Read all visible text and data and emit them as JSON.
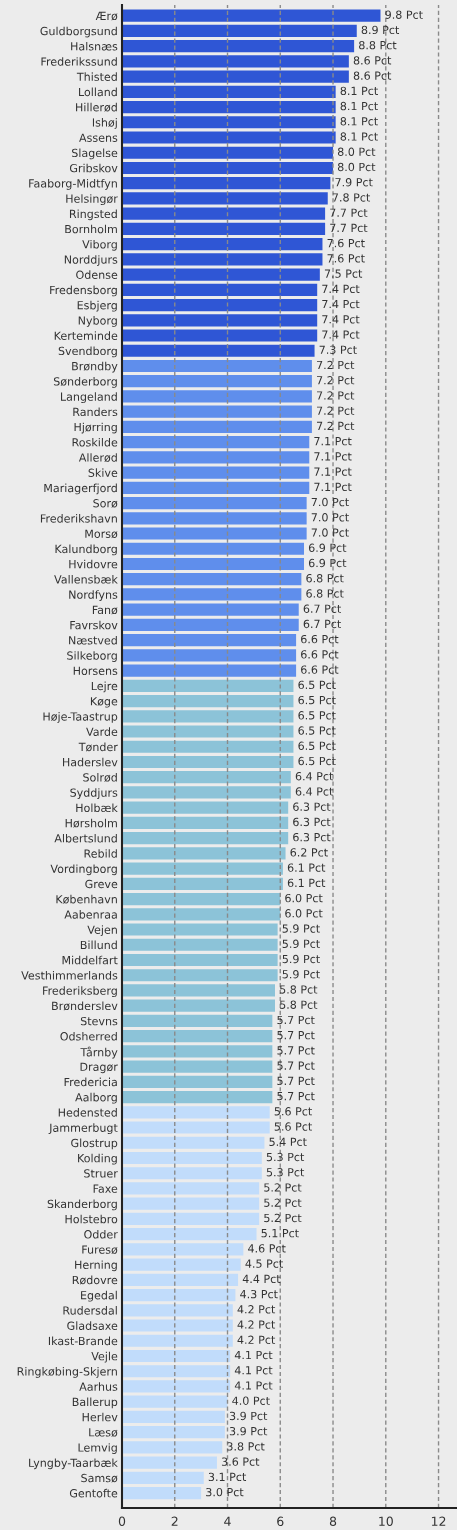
{
  "chart_data": {
    "type": "bar",
    "orientation": "horizontal",
    "categories": [
      "Ærø",
      "Guldborgsund",
      "Halsnæs",
      "Frederikssund",
      "Thisted",
      "Lolland",
      "Hillerød",
      "Ishøj",
      "Assens",
      "Slagelse",
      "Gribskov",
      "Faaborg-Midtfyn",
      "Helsingør",
      "Ringsted",
      "Bornholm",
      "Viborg",
      "Norddjurs",
      "Odense",
      "Fredensborg",
      "Esbjerg",
      "Nyborg",
      "Kerteminde",
      "Svendborg",
      "Brøndby",
      "Sønderborg",
      "Langeland",
      "Randers",
      "Hjørring",
      "Roskilde",
      "Allerød",
      "Skive",
      "Mariagerfjord",
      "Sorø",
      "Frederikshavn",
      "Morsø",
      "Kalundborg",
      "Hvidovre",
      "Vallensbæk",
      "Nordfyns",
      "Fanø",
      "Favrskov",
      "Næstved",
      "Silkeborg",
      "Horsens",
      "Lejre",
      "Køge",
      "Høje-Taastrup",
      "Varde",
      "Tønder",
      "Haderslev",
      "Solrød",
      "Syddjurs",
      "Holbæk",
      "Hørsholm",
      "Albertslund",
      "Rebild",
      "Vordingborg",
      "Greve",
      "København",
      "Aabenraa",
      "Vejen",
      "Billund",
      "Middelfart",
      "Vesthimmerlands",
      "Frederiksberg",
      "Brønderslev",
      "Stevns",
      "Odsherred",
      "Tårnby",
      "Dragør",
      "Fredericia",
      "Aalborg",
      "Hedensted",
      "Jammerbugt",
      "Glostrup",
      "Kolding",
      "Struer",
      "Faxe",
      "Skanderborg",
      "Holstebro",
      "Odder",
      "Furesø",
      "Herning",
      "Rødovre",
      "Egedal",
      "Rudersdal",
      "Gladsaxe",
      "Ikast-Brande",
      "Vejle",
      "Ringkøbing-Skjern",
      "Aarhus",
      "Ballerup",
      "Herlev",
      "Læsø",
      "Lemvig",
      "Lyngby-Taarbæk",
      "Samsø",
      "Gentofte"
    ],
    "values": [
      9.8,
      8.9,
      8.8,
      8.6,
      8.6,
      8.1,
      8.1,
      8.1,
      8.1,
      8.0,
      8.0,
      7.9,
      7.8,
      7.7,
      7.7,
      7.6,
      7.6,
      7.5,
      7.4,
      7.4,
      7.4,
      7.4,
      7.3,
      7.2,
      7.2,
      7.2,
      7.2,
      7.2,
      7.1,
      7.1,
      7.1,
      7.1,
      7.0,
      7.0,
      7.0,
      6.9,
      6.9,
      6.8,
      6.8,
      6.7,
      6.7,
      6.6,
      6.6,
      6.6,
      6.5,
      6.5,
      6.5,
      6.5,
      6.5,
      6.5,
      6.4,
      6.4,
      6.3,
      6.3,
      6.3,
      6.2,
      6.1,
      6.1,
      6.0,
      6.0,
      5.9,
      5.9,
      5.9,
      5.9,
      5.8,
      5.8,
      5.7,
      5.7,
      5.7,
      5.7,
      5.7,
      5.7,
      5.6,
      5.6,
      5.4,
      5.3,
      5.3,
      5.2,
      5.2,
      5.2,
      5.1,
      4.6,
      4.5,
      4.4,
      4.3,
      4.2,
      4.2,
      4.2,
      4.1,
      4.1,
      4.1,
      4.0,
      3.9,
      3.9,
      3.8,
      3.6,
      3.1,
      3.0
    ],
    "value_labels": [
      "9.8 Pct",
      "8.9 Pct",
      "8.8 Pct",
      "8.6 Pct",
      "8.6 Pct",
      "8.1 Pct",
      "8.1 Pct",
      "8.1 Pct",
      "8.1 Pct",
      "8.0 Pct",
      "8.0 Pct",
      "7.9 Pct",
      "7.8 Pct",
      "7.7 Pct",
      "7.7 Pct",
      "7.6 Pct",
      "7.6 Pct",
      "7.5 Pct",
      "7.4 Pct",
      "7.4 Pct",
      "7.4 Pct",
      "7.4 Pct",
      "7.3 Pct",
      "7.2 Pct",
      "7.2 Pct",
      "7.2 Pct",
      "7.2 Pct",
      "7.2 Pct",
      "7.1 Pct",
      "7.1 Pct",
      "7.1 Pct",
      "7.1 Pct",
      "7.0 Pct",
      "7.0 Pct",
      "7.0 Pct",
      "6.9 Pct",
      "6.9 Pct",
      "6.8 Pct",
      "6.8 Pct",
      "6.7 Pct",
      "6.7 Pct",
      "6.6 Pct",
      "6.6 Pct",
      "6.6 Pct",
      "6.5 Pct",
      "6.5 Pct",
      "6.5 Pct",
      "6.5 Pct",
      "6.5 Pct",
      "6.5 Pct",
      "6.4 Pct",
      "6.4 Pct",
      "6.3 Pct",
      "6.3 Pct",
      "6.3 Pct",
      "6.2 Pct",
      "6.1 Pct",
      "6.1 Pct",
      "6.0 Pct",
      "6.0 Pct",
      "5.9 Pct",
      "5.9 Pct",
      "5.9 Pct",
      "5.9 Pct",
      "5.8 Pct",
      "5.8 Pct",
      "5.7 Pct",
      "5.7 Pct",
      "5.7 Pct",
      "5.7 Pct",
      "5.7 Pct",
      "5.7 Pct",
      "5.6 Pct",
      "5.6 Pct",
      "5.4 Pct",
      "5.3 Pct",
      "5.3 Pct",
      "5.2 Pct",
      "5.2 Pct",
      "5.2 Pct",
      "5.1 Pct",
      "4.6 Pct",
      "4.5 Pct",
      "4.4 Pct",
      "4.3 Pct",
      "4.2 Pct",
      "4.2 Pct",
      "4.2 Pct",
      "4.1 Pct",
      "4.1 Pct",
      "4.1 Pct",
      "4.0 Pct",
      "3.9 Pct",
      "3.9 Pct",
      "3.8 Pct",
      "3.6 Pct",
      "3.1 Pct",
      "3.0 Pct"
    ],
    "colors": [
      "#2f56d5",
      "#2f56d5",
      "#2f56d5",
      "#2f56d5",
      "#2f56d5",
      "#2f56d5",
      "#2f56d5",
      "#2f56d5",
      "#2f56d5",
      "#2f56d5",
      "#2f56d5",
      "#2f56d5",
      "#2f56d5",
      "#2f56d5",
      "#2f56d5",
      "#2f56d5",
      "#2f56d5",
      "#2f56d5",
      "#2f56d5",
      "#2f56d5",
      "#2f56d5",
      "#2f56d5",
      "#2f56d5",
      "#5f8eec",
      "#5f8eec",
      "#5f8eec",
      "#5f8eec",
      "#5f8eec",
      "#5f8eec",
      "#5f8eec",
      "#5f8eec",
      "#5f8eec",
      "#5f8eec",
      "#5f8eec",
      "#5f8eec",
      "#5f8eec",
      "#5f8eec",
      "#5f8eec",
      "#5f8eec",
      "#5f8eec",
      "#5f8eec",
      "#5f8eec",
      "#5f8eec",
      "#5f8eec",
      "#8cc3d8",
      "#8cc3d8",
      "#8cc3d8",
      "#8cc3d8",
      "#8cc3d8",
      "#8cc3d8",
      "#8cc3d8",
      "#8cc3d8",
      "#8cc3d8",
      "#8cc3d8",
      "#8cc3d8",
      "#8cc3d8",
      "#8cc3d8",
      "#8cc3d8",
      "#8cc3d8",
      "#8cc3d8",
      "#8cc3d8",
      "#8cc3d8",
      "#8cc3d8",
      "#8cc3d8",
      "#8cc3d8",
      "#8cc3d8",
      "#8cc3d8",
      "#8cc3d8",
      "#8cc3d8",
      "#8cc3d8",
      "#8cc3d8",
      "#8cc3d8",
      "#c1dcfb",
      "#c1dcfb",
      "#c1dcfb",
      "#c1dcfb",
      "#c1dcfb",
      "#c1dcfb",
      "#c1dcfb",
      "#c1dcfb",
      "#c1dcfb",
      "#c1dcfb",
      "#c1dcfb",
      "#c1dcfb",
      "#c1dcfb",
      "#c1dcfb",
      "#c1dcfb",
      "#c1dcfb",
      "#c1dcfb",
      "#c1dcfb",
      "#c1dcfb",
      "#c1dcfb",
      "#c1dcfb",
      "#c1dcfb",
      "#c1dcfb",
      "#c1dcfb",
      "#c1dcfb",
      "#c1dcfb"
    ],
    "xlim": [
      0,
      12.7
    ],
    "xticks": [
      0,
      2,
      4,
      6,
      8,
      10,
      12
    ],
    "grid": "x"
  }
}
